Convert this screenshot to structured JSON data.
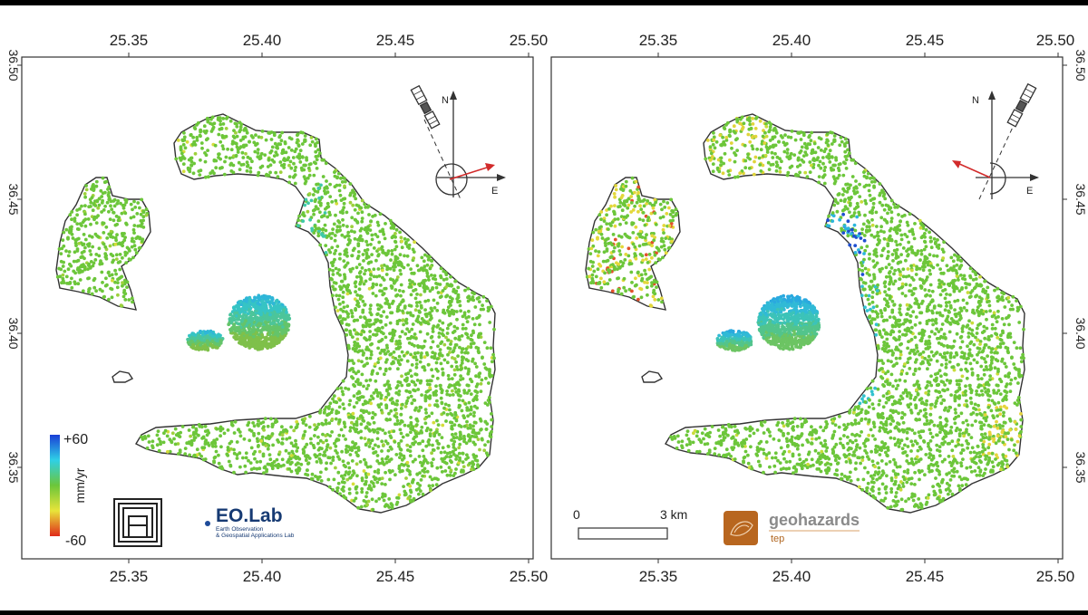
{
  "x_ticks": [
    "25.35",
    "25.40",
    "25.45",
    "25.50"
  ],
  "y_ticks": [
    "36.50",
    "36.45",
    "36.40",
    "36.35"
  ],
  "compass": {
    "north": "N",
    "east": "E"
  },
  "colorbar": {
    "max": "+60",
    "min": "-60",
    "unit": "mm/yr",
    "colors": [
      "#1a3fd6",
      "#2fd0e6",
      "#6cc63a",
      "#e8e43a",
      "#e02a1a"
    ]
  },
  "logos": {
    "eolab": {
      "name": "EO",
      "dot": ".",
      "suffix": "Lab",
      "subtitle_1": "Earth Observation",
      "subtitle_2": "& Geospatial Applications Lab"
    },
    "geohazards": {
      "name": "geohazards",
      "subtitle": "tep"
    }
  },
  "scalebar": {
    "start": "0",
    "end": "3 km"
  },
  "colors": {
    "points_base": "#6cc63a",
    "los_arrow": "#d22b2b",
    "coastline": "#333333"
  }
}
